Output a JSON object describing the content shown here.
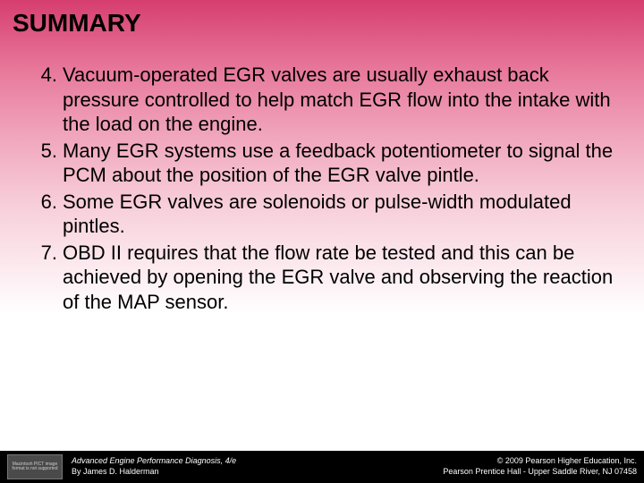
{
  "title": "SUMMARY",
  "list_start": 4,
  "items": [
    "Vacuum-operated EGR valves are usually exhaust back pressure controlled to help match EGR flow into the intake with the load on the engine.",
    "Many EGR systems use a feedback potentiometer to signal the PCM about the position of the EGR valve pintle.",
    "Some EGR valves are solenoids or pulse-width modulated pintles.",
    "OBD II requires that the flow rate be tested and this can be achieved by opening the EGR valve and observing the reaction of the MAP sensor."
  ],
  "footer": {
    "placeholder_text": "Macintosh PICT image format is not supported",
    "left_line1": "Advanced Engine Performance Diagnosis, 4/e",
    "left_line2": "By James D. Halderman",
    "right_line1": "© 2009 Pearson Higher Education, Inc.",
    "right_line2": "Pearson Prentice Hall - Upper Saddle River, NJ 07458"
  },
  "colors": {
    "gradient_top": "#d63e6f",
    "gradient_bottom": "#ffffff",
    "text": "#000000",
    "footer_bg": "#000000",
    "footer_text": "#ffffff"
  },
  "typography": {
    "title_fontsize": 28,
    "body_fontsize": 22,
    "footer_fontsize": 9,
    "font_family": "Arial"
  }
}
